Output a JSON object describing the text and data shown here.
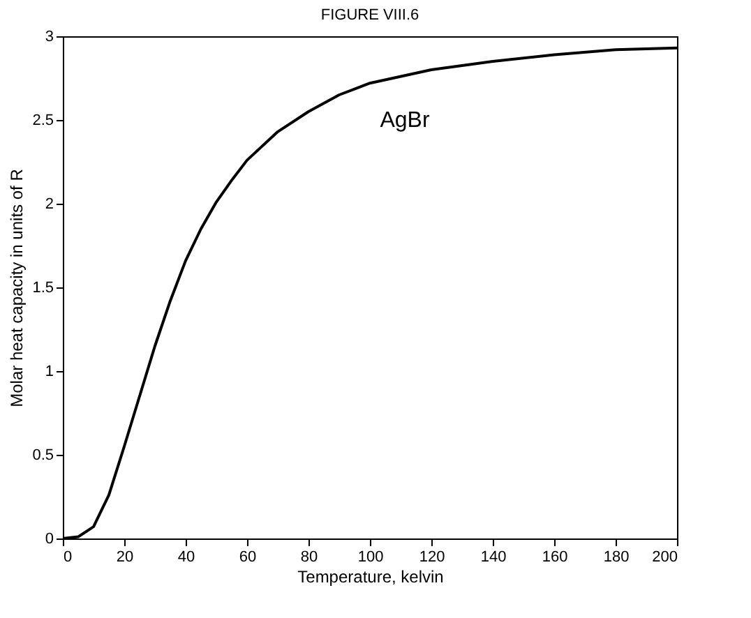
{
  "chart_data": {
    "type": "line",
    "title": "FIGURE VIII.6",
    "xlabel": "Temperature, kelvin",
    "ylabel": "Molar heat capacity in units of R",
    "x": [
      0,
      5,
      10,
      15,
      20,
      25,
      30,
      35,
      40,
      45,
      50,
      55,
      60,
      70,
      80,
      90,
      100,
      120,
      140,
      160,
      180,
      200
    ],
    "series": [
      {
        "color": "#000000",
        "values": [
          0,
          0.01,
          0.07,
          0.26,
          0.55,
          0.85,
          1.15,
          1.42,
          1.66,
          1.85,
          2.01,
          2.14,
          2.26,
          2.43,
          2.55,
          2.65,
          2.72,
          2.8,
          2.85,
          2.89,
          2.92,
          2.93
        ]
      }
    ],
    "xlim": [
      0,
      200
    ],
    "xticks": [
      0,
      20,
      40,
      60,
      80,
      100,
      120,
      140,
      160,
      180,
      200
    ],
    "ylim": [
      0,
      3
    ],
    "yticks": [
      0,
      0.5,
      1,
      1.5,
      2,
      2.5,
      3
    ],
    "annotations": [
      "AgBr"
    ],
    "grid": false,
    "marker": "none",
    "line_style": "solid"
  }
}
